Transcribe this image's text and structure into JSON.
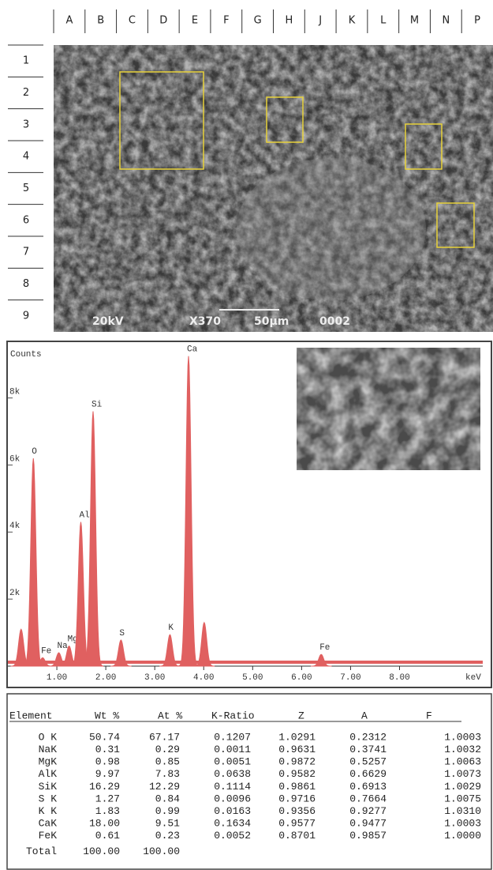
{
  "grid": {
    "columns": [
      "A",
      "B",
      "C",
      "D",
      "E",
      "F",
      "G",
      "H",
      "J",
      "K",
      "L",
      "M",
      "N",
      "P"
    ],
    "rows": [
      "1",
      "2",
      "3",
      "4",
      "5",
      "6",
      "7",
      "8",
      "9"
    ]
  },
  "micrograph": {
    "labels": [
      "20kV",
      "X370",
      "50μm",
      "0002"
    ]
  },
  "spectrum": {
    "y_label": "Counts",
    "x_label": "keV",
    "color": "#e06060",
    "xlim": [
      0,
      9.7
    ],
    "ylim": [
      0,
      9500
    ],
    "xticks": [
      {
        "value": 1,
        "label": "1.00"
      },
      {
        "value": 2,
        "label": "2.00"
      },
      {
        "value": 3,
        "label": "3.00"
      },
      {
        "value": 4,
        "label": "4.00"
      },
      {
        "value": 5,
        "label": "5.00"
      },
      {
        "value": 6,
        "label": "6.00"
      },
      {
        "value": 7,
        "label": "7.00"
      },
      {
        "value": 8,
        "label": "8.00"
      }
    ],
    "yticks": [
      {
        "value": 2000,
        "label": "2k"
      },
      {
        "value": 4000,
        "label": "4k"
      },
      {
        "value": 6000,
        "label": "6k"
      },
      {
        "value": 8000,
        "label": "8k"
      }
    ],
    "peaks": [
      {
        "energy": 0.27,
        "counts": 1100
      },
      {
        "energy": 0.52,
        "counts": 6200,
        "label": "O"
      },
      {
        "energy": 0.71,
        "counts": 250,
        "label": "Fe"
      },
      {
        "energy": 1.04,
        "counts": 400,
        "label": "Na"
      },
      {
        "energy": 1.25,
        "counts": 600,
        "label": "Mg"
      },
      {
        "energy": 1.49,
        "counts": 4300,
        "label": "Al"
      },
      {
        "energy": 1.74,
        "counts": 7600,
        "label": "Si"
      },
      {
        "energy": 2.31,
        "counts": 780,
        "label": "S"
      },
      {
        "energy": 3.31,
        "counts": 940,
        "label": "K"
      },
      {
        "energy": 3.69,
        "counts": 9250,
        "label": "Ca"
      },
      {
        "energy": 4.01,
        "counts": 1300
      },
      {
        "energy": 6.4,
        "counts": 350,
        "label": "Fe"
      }
    ]
  },
  "table": {
    "header": [
      "Element",
      "Wt %",
      "At %",
      "K-Ratio",
      "Z",
      "A",
      "F"
    ],
    "rows": [
      [
        "O K",
        "50.74",
        "67.17",
        "0.1207",
        "1.0291",
        "0.2312",
        "1.0003"
      ],
      [
        "NaK",
        "0.31",
        "0.29",
        "0.0011",
        "0.9631",
        "0.3741",
        "1.0032"
      ],
      [
        "MgK",
        "0.98",
        "0.85",
        "0.0051",
        "0.9872",
        "0.5257",
        "1.0063"
      ],
      [
        "AlK",
        "9.97",
        "7.83",
        "0.0638",
        "0.9582",
        "0.6629",
        "1.0073"
      ],
      [
        "SiK",
        "16.29",
        "12.29",
        "0.1114",
        "0.9861",
        "0.6913",
        "1.0029"
      ],
      [
        "S K",
        "1.27",
        "0.84",
        "0.0096",
        "0.9716",
        "0.7664",
        "1.0075"
      ],
      [
        "K K",
        "1.83",
        "0.99",
        "0.0163",
        "0.9356",
        "0.9277",
        "1.0310"
      ],
      [
        "CaK",
        "18.00",
        "9.51",
        "0.1634",
        "0.9577",
        "0.9477",
        "1.0003"
      ],
      [
        "FeK",
        "0.61",
        "0.23",
        "0.0052",
        "0.8701",
        "0.9857",
        "1.0000"
      ],
      [
        "Total",
        "100.00",
        "100.00"
      ]
    ]
  }
}
